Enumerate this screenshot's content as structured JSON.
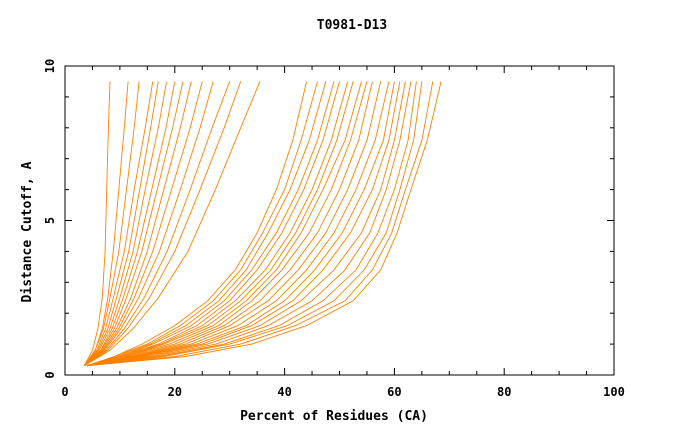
{
  "chart_data": {
    "type": "line",
    "title": "T0981-D13",
    "xlabel": "Percent of Residues (CA)",
    "ylabel": "Distance Cutoff, A",
    "xlim": [
      0,
      100
    ],
    "ylim": [
      0,
      10
    ],
    "x_ticks": [
      0,
      20,
      40,
      60,
      80,
      100
    ],
    "y_ticks": [
      0,
      5,
      10
    ],
    "x_minor_step": 5,
    "y_minor_step": 1,
    "grid": false,
    "line_color": "#ff8000",
    "y_max_plotted": 9.5,
    "series": [
      {
        "values": [
          [
            3.5,
            0.3
          ],
          [
            5,
            0.8
          ],
          [
            6,
            1.5
          ],
          [
            6.8,
            2.5
          ],
          [
            7.3,
            4
          ],
          [
            7.6,
            6
          ],
          [
            7.9,
            8
          ],
          [
            8.2,
            9.5
          ]
        ]
      },
      {
        "values": [
          [
            3.5,
            0.3
          ],
          [
            5.5,
            0.8
          ],
          [
            6.8,
            1.5
          ],
          [
            7.8,
            2.5
          ],
          [
            8.8,
            4
          ],
          [
            9.8,
            6
          ],
          [
            10.8,
            8
          ],
          [
            11.5,
            9.5
          ]
        ]
      },
      {
        "values": [
          [
            3.5,
            0.3
          ],
          [
            5.5,
            0.8
          ],
          [
            7,
            1.5
          ],
          [
            8.2,
            2.5
          ],
          [
            9.8,
            4
          ],
          [
            11.2,
            6
          ],
          [
            12.6,
            8
          ],
          [
            13.5,
            9.5
          ]
        ]
      },
      {
        "values": [
          [
            3.5,
            0.3
          ],
          [
            5.8,
            0.8
          ],
          [
            7.4,
            1.5
          ],
          [
            8.8,
            2.5
          ],
          [
            10.8,
            4
          ],
          [
            12.6,
            6
          ],
          [
            14.6,
            8
          ],
          [
            16,
            9.5
          ]
        ]
      },
      {
        "values": [
          [
            3.5,
            0.3
          ],
          [
            6,
            0.8
          ],
          [
            7.8,
            1.5
          ],
          [
            9.4,
            2.5
          ],
          [
            11.6,
            4
          ],
          [
            13.6,
            6
          ],
          [
            15.6,
            8
          ],
          [
            17,
            9.5
          ]
        ]
      },
      {
        "values": [
          [
            3.5,
            0.3
          ],
          [
            6.2,
            0.8
          ],
          [
            8.2,
            1.5
          ],
          [
            10,
            2.5
          ],
          [
            12.4,
            4
          ],
          [
            14.6,
            6
          ],
          [
            17,
            8
          ],
          [
            18.5,
            9.5
          ]
        ]
      },
      {
        "values": [
          [
            3.5,
            0.3
          ],
          [
            6.5,
            0.8
          ],
          [
            8.6,
            1.5
          ],
          [
            10.6,
            2.5
          ],
          [
            13.2,
            4
          ],
          [
            15.8,
            6
          ],
          [
            18.4,
            8
          ],
          [
            20,
            9.5
          ]
        ]
      },
      {
        "values": [
          [
            3.5,
            0.3
          ],
          [
            6.6,
            0.8
          ],
          [
            9,
            1.5
          ],
          [
            11.2,
            2.5
          ],
          [
            14,
            4
          ],
          [
            16.8,
            6
          ],
          [
            19.6,
            8
          ],
          [
            21.5,
            9.5
          ]
        ]
      },
      {
        "values": [
          [
            3.5,
            0.3
          ],
          [
            6.8,
            0.8
          ],
          [
            9.4,
            1.5
          ],
          [
            12,
            2.5
          ],
          [
            15,
            4
          ],
          [
            18,
            6
          ],
          [
            21,
            8
          ],
          [
            23,
            9.5
          ]
        ]
      },
      {
        "values": [
          [
            3.5,
            0.3
          ],
          [
            7,
            0.8
          ],
          [
            9.8,
            1.5
          ],
          [
            12.6,
            2.5
          ],
          [
            16,
            4
          ],
          [
            19.4,
            6
          ],
          [
            22.8,
            8
          ],
          [
            25,
            9.5
          ]
        ]
      },
      {
        "values": [
          [
            3.5,
            0.3
          ],
          [
            7.2,
            0.8
          ],
          [
            10.2,
            1.5
          ],
          [
            13.4,
            2.5
          ],
          [
            17.2,
            4
          ],
          [
            21,
            6
          ],
          [
            24.6,
            8
          ],
          [
            27,
            9.5
          ]
        ]
      },
      {
        "values": [
          [
            3.5,
            0.3
          ],
          [
            7.5,
            0.8
          ],
          [
            10.8,
            1.5
          ],
          [
            14.4,
            2.5
          ],
          [
            18.6,
            4
          ],
          [
            22.8,
            6
          ],
          [
            26.8,
            8
          ],
          [
            30,
            9.5
          ]
        ]
      },
      {
        "values": [
          [
            3.5,
            0.3
          ],
          [
            7.8,
            0.8
          ],
          [
            11.4,
            1.5
          ],
          [
            15.4,
            2.5
          ],
          [
            20,
            4
          ],
          [
            24.6,
            6
          ],
          [
            29,
            8
          ],
          [
            32,
            9.5
          ]
        ]
      },
      {
        "values": [
          [
            3.5,
            0.3
          ],
          [
            8.2,
            0.8
          ],
          [
            12.4,
            1.5
          ],
          [
            17,
            2.5
          ],
          [
            22.4,
            4
          ],
          [
            27.4,
            6
          ],
          [
            32,
            8
          ],
          [
            35.5,
            9.5
          ]
        ]
      },
      {
        "values": [
          [
            4,
            0.3
          ],
          [
            9,
            0.6
          ],
          [
            14,
            1
          ],
          [
            20,
            1.6
          ],
          [
            26,
            2.4
          ],
          [
            31,
            3.4
          ],
          [
            35,
            4.6
          ],
          [
            38.5,
            6
          ],
          [
            41.5,
            7.6
          ],
          [
            44,
            9.5
          ]
        ]
      },
      {
        "values": [
          [
            4,
            0.3
          ],
          [
            9,
            0.6
          ],
          [
            15,
            1
          ],
          [
            21,
            1.6
          ],
          [
            27,
            2.4
          ],
          [
            32,
            3.4
          ],
          [
            36,
            4.6
          ],
          [
            40,
            6
          ],
          [
            43,
            7.6
          ],
          [
            46,
            9.5
          ]
        ]
      },
      {
        "values": [
          [
            4,
            0.3
          ],
          [
            9.5,
            0.6
          ],
          [
            15.5,
            1
          ],
          [
            22,
            1.6
          ],
          [
            28,
            2.4
          ],
          [
            33,
            3.4
          ],
          [
            37,
            4.6
          ],
          [
            41,
            6
          ],
          [
            44.5,
            7.6
          ],
          [
            47.5,
            9.5
          ]
        ]
      },
      {
        "values": [
          [
            4,
            0.3
          ],
          [
            10,
            0.6
          ],
          [
            16,
            1
          ],
          [
            23,
            1.6
          ],
          [
            29,
            2.4
          ],
          [
            34,
            3.4
          ],
          [
            38.5,
            4.6
          ],
          [
            42.5,
            6
          ],
          [
            46,
            7.6
          ],
          [
            49,
            9.5
          ]
        ]
      },
      {
        "values": [
          [
            4,
            0.3
          ],
          [
            10,
            0.6
          ],
          [
            17,
            1
          ],
          [
            24,
            1.6
          ],
          [
            30,
            2.4
          ],
          [
            35,
            3.4
          ],
          [
            39.5,
            4.6
          ],
          [
            43.5,
            6
          ],
          [
            47,
            7.6
          ],
          [
            50,
            9.5
          ]
        ]
      },
      {
        "values": [
          [
            4,
            0.3
          ],
          [
            10.5,
            0.6
          ],
          [
            17.5,
            1
          ],
          [
            25,
            1.6
          ],
          [
            31,
            2.4
          ],
          [
            36.5,
            3.4
          ],
          [
            41,
            4.6
          ],
          [
            45,
            6
          ],
          [
            48.5,
            7.6
          ],
          [
            51.5,
            9.5
          ]
        ]
      },
      {
        "values": [
          [
            4,
            0.3
          ],
          [
            11,
            0.6
          ],
          [
            18,
            1
          ],
          [
            26,
            1.6
          ],
          [
            32,
            2.4
          ],
          [
            37.5,
            3.4
          ],
          [
            42,
            4.6
          ],
          [
            46,
            6
          ],
          [
            49.5,
            7.6
          ],
          [
            52.5,
            9.5
          ]
        ]
      },
      {
        "values": [
          [
            4,
            0.3
          ],
          [
            11,
            0.6
          ],
          [
            19,
            1
          ],
          [
            27,
            1.6
          ],
          [
            33,
            2.4
          ],
          [
            38.5,
            3.4
          ],
          [
            43,
            4.6
          ],
          [
            47,
            6
          ],
          [
            51,
            7.6
          ],
          [
            54,
            9.5
          ]
        ]
      },
      {
        "values": [
          [
            4,
            0.3
          ],
          [
            11.5,
            0.6
          ],
          [
            20,
            1
          ],
          [
            28,
            1.6
          ],
          [
            34,
            2.4
          ],
          [
            39.5,
            3.4
          ],
          [
            44.5,
            4.6
          ],
          [
            48.5,
            6
          ],
          [
            52,
            7.6
          ],
          [
            55,
            9.5
          ]
        ]
      },
      {
        "values": [
          [
            4,
            0.3
          ],
          [
            12,
            0.6
          ],
          [
            21,
            1
          ],
          [
            29,
            1.6
          ],
          [
            35.5,
            2.4
          ],
          [
            41,
            3.4
          ],
          [
            46,
            4.6
          ],
          [
            50,
            6
          ],
          [
            53.5,
            7.6
          ],
          [
            56,
            9.5
          ]
        ]
      },
      {
        "values": [
          [
            4,
            0.3
          ],
          [
            12.5,
            0.6
          ],
          [
            22,
            1
          ],
          [
            30,
            1.6
          ],
          [
            37,
            2.4
          ],
          [
            42.5,
            3.4
          ],
          [
            47.5,
            4.6
          ],
          [
            51.5,
            6
          ],
          [
            55,
            7.6
          ],
          [
            57.5,
            9.5
          ]
        ]
      },
      {
        "values": [
          [
            4,
            0.3
          ],
          [
            13,
            0.6
          ],
          [
            23,
            1
          ],
          [
            31.5,
            1.6
          ],
          [
            38.5,
            2.4
          ],
          [
            44,
            3.4
          ],
          [
            49,
            4.6
          ],
          [
            53,
            6
          ],
          [
            56.5,
            7.6
          ],
          [
            59,
            9.5
          ]
        ]
      },
      {
        "values": [
          [
            4,
            0.3
          ],
          [
            13.5,
            0.6
          ],
          [
            24,
            1
          ],
          [
            33,
            1.6
          ],
          [
            40,
            2.4
          ],
          [
            45.5,
            3.4
          ],
          [
            50.5,
            4.6
          ],
          [
            54.5,
            6
          ],
          [
            58,
            7.6
          ],
          [
            60,
            9.5
          ]
        ]
      },
      {
        "values": [
          [
            4,
            0.3
          ],
          [
            14,
            0.6
          ],
          [
            25,
            1
          ],
          [
            34,
            1.6
          ],
          [
            41.5,
            2.4
          ],
          [
            47,
            3.4
          ],
          [
            52,
            4.6
          ],
          [
            56,
            6
          ],
          [
            59,
            7.6
          ],
          [
            61,
            9.5
          ]
        ]
      },
      {
        "values": [
          [
            4,
            0.3
          ],
          [
            15,
            0.6
          ],
          [
            26,
            1
          ],
          [
            35.5,
            1.6
          ],
          [
            43,
            2.4
          ],
          [
            49,
            3.4
          ],
          [
            54,
            4.6
          ],
          [
            57.5,
            6
          ],
          [
            60,
            7.6
          ],
          [
            62,
            9.5
          ]
        ]
      },
      {
        "values": [
          [
            4,
            0.3
          ],
          [
            16,
            0.6
          ],
          [
            27.5,
            1
          ],
          [
            37,
            1.6
          ],
          [
            45,
            2.4
          ],
          [
            51,
            3.4
          ],
          [
            55.5,
            4.6
          ],
          [
            58.5,
            6
          ],
          [
            61,
            7.6
          ],
          [
            63,
            9.5
          ]
        ]
      },
      {
        "values": [
          [
            4,
            0.3
          ],
          [
            17,
            0.6
          ],
          [
            29,
            1
          ],
          [
            39,
            1.6
          ],
          [
            47,
            2.4
          ],
          [
            53,
            3.4
          ],
          [
            57,
            4.6
          ],
          [
            60,
            6
          ],
          [
            62.5,
            7.6
          ],
          [
            64,
            9.5
          ]
        ]
      },
      {
        "values": [
          [
            4,
            0.3
          ],
          [
            18,
            0.6
          ],
          [
            30,
            1
          ],
          [
            40.5,
            1.6
          ],
          [
            49,
            2.4
          ],
          [
            54.5,
            3.4
          ],
          [
            58.5,
            4.6
          ],
          [
            61,
            6
          ],
          [
            63.5,
            7.6
          ],
          [
            65,
            9.5
          ]
        ]
      },
      {
        "values": [
          [
            4,
            0.3
          ],
          [
            20,
            0.6
          ],
          [
            32,
            1
          ],
          [
            42,
            1.6
          ],
          [
            51,
            2.4
          ],
          [
            56,
            3.4
          ],
          [
            59.5,
            4.6
          ],
          [
            62,
            6
          ],
          [
            65,
            7.6
          ],
          [
            67,
            9.5
          ]
        ]
      },
      {
        "values": [
          [
            4,
            0.3
          ],
          [
            22,
            0.6
          ],
          [
            34,
            1
          ],
          [
            44,
            1.6
          ],
          [
            52.5,
            2.4
          ],
          [
            57.5,
            3.4
          ],
          [
            60.5,
            4.6
          ],
          [
            63,
            6
          ],
          [
            66,
            7.6
          ],
          [
            68.5,
            9.5
          ]
        ]
      }
    ]
  }
}
